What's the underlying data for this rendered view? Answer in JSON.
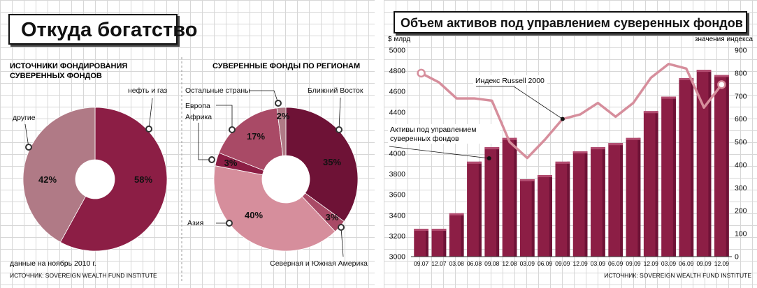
{
  "left_panel": {
    "title": "Откуда богатство",
    "note": "данные на ноябрь 2010 г.",
    "source": "ИСТОЧНИК: SOVEREIGN WEALTH FUND INSTITUTE"
  },
  "right_panel": {
    "title": "Объем активов под управлением суверенных фондов",
    "source": "ИСТОЧНИК: SOVEREIGN WEALTH FUND INSTITUTE"
  },
  "colors": {
    "dark": "#8c1e45",
    "dark2": "#6e1236",
    "mid": "#a94a66",
    "light": "#b07a86",
    "pink": "#d68e9c",
    "line": "#d68e9c"
  },
  "chart_data": [
    {
      "type": "pie",
      "title_lines": [
        "ИСТОЧНИКИ ФОНДИРОВАНИЯ",
        "СУВЕРЕННЫХ ФОНДОВ"
      ],
      "categories": [
        "нефть и газ",
        "другие"
      ],
      "values": [
        58,
        42
      ],
      "value_labels": [
        "58%",
        "42%"
      ]
    },
    {
      "type": "pie",
      "title_lines": [
        "СУВЕРЕННЫЕ ФОНДЫ ПО РЕГИОНАМ"
      ],
      "categories": [
        "Ближний Восток",
        "Северная и Южная Америка",
        "Азия",
        "Африка",
        "Европа",
        "Остальные страны"
      ],
      "values": [
        35,
        3,
        40,
        3,
        17,
        2
      ],
      "value_labels": [
        "35%",
        "3%",
        "40%",
        "3%",
        "17%",
        "2%"
      ]
    },
    {
      "type": "bar",
      "categories": [
        "09.07",
        "12.07",
        "03.08",
        "06.08",
        "09.08",
        "12.08",
        "03.09",
        "06.09",
        "09.09",
        "12.09",
        "03.09",
        "06.09",
        "09.09",
        "12.09",
        "03.09",
        "06.09",
        "09.09",
        "12.09"
      ],
      "series": [
        {
          "name": "Активы под управлением суверенных фондов",
          "axis": "left",
          "type": "bar",
          "values": [
            3270,
            3270,
            3420,
            3920,
            4060,
            4150,
            3750,
            3790,
            3920,
            4020,
            4060,
            4100,
            4150,
            4410,
            4550,
            4730,
            4810,
            4760
          ]
        },
        {
          "name": "Индекс Russell 2000",
          "axis": "right",
          "type": "line",
          "values": [
            800,
            760,
            690,
            690,
            680,
            500,
            430,
            510,
            600,
            620,
            670,
            610,
            670,
            780,
            840,
            820,
            650,
            750
          ]
        }
      ],
      "ylabel": "$ млрд",
      "y2label": "значения индекса",
      "ylim": [
        3000,
        5000
      ],
      "y2lim": [
        0,
        900
      ],
      "yticks": [
        3000,
        3200,
        3400,
        3600,
        3800,
        4000,
        4200,
        4400,
        4600,
        4800,
        5000
      ],
      "y2ticks": [
        0,
        100,
        200,
        300,
        400,
        500,
        600,
        700,
        800,
        900
      ],
      "annotations": [
        "Индекс Russell 2000",
        "Активы под управлением суверенных фондов"
      ]
    }
  ]
}
